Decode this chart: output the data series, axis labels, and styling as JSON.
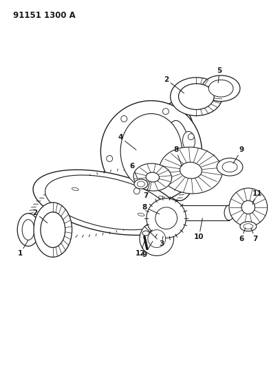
{
  "title": "91151 1300 A",
  "bg": "#ffffff",
  "lc": "#1a1a1a",
  "figsize": [
    3.91,
    5.33
  ],
  "dpi": 100,
  "xlim": [
    0,
    391
  ],
  "ylim": [
    0,
    533
  ]
}
